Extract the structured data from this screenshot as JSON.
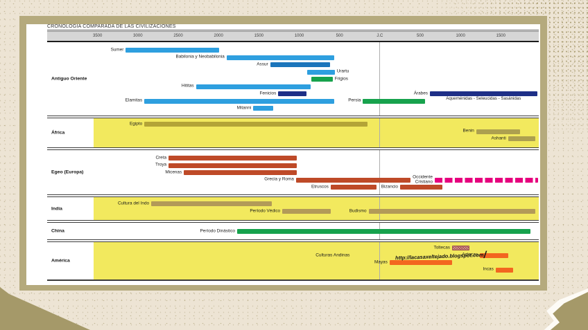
{
  "title": "CRONOLOGIA COMPARADA DE LAS CIVILIZACIONES",
  "watermark": "http://lacasaxeltejado.blogspot.com/",
  "axis": {
    "ticks": [
      {
        "label": "3500",
        "year": -3500
      },
      {
        "label": "3000",
        "year": -3000
      },
      {
        "label": "2500",
        "year": -2500
      },
      {
        "label": "2000",
        "year": -2000
      },
      {
        "label": "1500",
        "year": -1500
      },
      {
        "label": "1000",
        "year": -1000
      },
      {
        "label": "500",
        "year": -500
      },
      {
        "label": "J.C",
        "year": 0
      },
      {
        "label": "500",
        "year": 500
      },
      {
        "label": "1000",
        "year": 1000
      },
      {
        "label": "1500",
        "year": 1500
      }
    ]
  },
  "colors": {
    "lightblue": "#2E9FDF",
    "blue": "#1B75BB",
    "navy": "#1E2F87",
    "green": "#17A24D",
    "olive": "#B3A437",
    "khaki": "#ADA04F",
    "tan": "#B29A58",
    "brick": "#BE4A28",
    "magenta": "#E6007E",
    "orange": "#F3661F",
    "tolteca_base": "#D8A29C",
    "tolteca_line": "#9C4F4F",
    "yellow_band": "#F2E95E",
    "frame": "#B5AA7D"
  },
  "chart_data": {
    "type": "timeline",
    "x_range": [
      -4125,
      1970
    ],
    "note_on_years": "negative = antes de J.C, positive = despues de J.C",
    "sections": [
      {
        "id": "antiguo-oriente",
        "label": "Antiguo Oriente",
        "background": "white",
        "rows": [
          [
            {
              "label": "Sumer",
              "start": -3150,
              "end": -1990,
              "color": "lightblue"
            }
          ],
          [
            {
              "label": "Babilonia y Neobabilonia",
              "start": -1900,
              "end": -570,
              "color": "lightblue"
            }
          ],
          [
            {
              "label": "Assur",
              "start": -1360,
              "end": -620,
              "color": "blue"
            }
          ],
          [
            {
              "label": "Urartu",
              "start": -900,
              "end": -560,
              "color": "lightblue",
              "label_side": "right"
            }
          ],
          [
            {
              "label": "Frigios",
              "start": -850,
              "end": -585,
              "color": "green",
              "label_side": "right"
            }
          ],
          [
            {
              "label": "Hititas",
              "start": -2280,
              "end": -860,
              "color": "lightblue"
            }
          ],
          [
            {
              "label": "Fenicios",
              "start": -1260,
              "end": -910,
              "color": "navy"
            },
            {
              "label": "Árabes",
              "start": 620,
              "end": 1950,
              "color": "navy",
              "sublabel": "Aqueménidas - Seleucidas - Sasánidas"
            }
          ],
          [
            {
              "label": "Elamitas",
              "start": -2920,
              "end": -570,
              "color": "lightblue"
            },
            {
              "label": "Persia",
              "start": -210,
              "end": 560,
              "color": "green"
            }
          ],
          [
            {
              "label": "Mitanni",
              "start": -1570,
              "end": -1320,
              "color": "lightblue"
            }
          ]
        ]
      },
      {
        "id": "africa",
        "label": "África",
        "background": "yellow",
        "rows": [
          [
            {
              "label": "Egipto",
              "start": -2920,
              "end": -155,
              "color": "olive"
            }
          ],
          [
            {
              "label": "Benin",
              "start": 1195,
              "end": 1735,
              "color": "khaki"
            }
          ],
          [
            {
              "label": "Ashanti",
              "start": 1590,
              "end": 1930,
              "color": "khaki"
            }
          ]
        ]
      },
      {
        "id": "egeo-europa",
        "label": "Egeo (Europa)",
        "background": "white",
        "rows": [
          [
            {
              "label": "Creta",
              "start": -2620,
              "end": -1030,
              "color": "brick"
            }
          ],
          [
            {
              "label": "Troya",
              "start": -2620,
              "end": -1030,
              "color": "brick"
            }
          ],
          [
            {
              "label": "Micenas",
              "start": -2430,
              "end": -1030,
              "color": "brick"
            }
          ],
          [
            {
              "label": "Grecia y Roma",
              "start": -1040,
              "end": 380,
              "color": "brick"
            },
            {
              "label": "Occidente\nCristiano",
              "start": 680,
              "end": 1960,
              "color": "magenta",
              "style": "dashed"
            }
          ],
          [
            {
              "label": "Etruscos",
              "start": -610,
              "end": -45,
              "color": "brick"
            },
            {
              "label": "Bizancio",
              "start": 250,
              "end": 775,
              "color": "brick"
            }
          ]
        ]
      },
      {
        "id": "india",
        "label": "India",
        "background": "yellow",
        "rows": [
          [
            {
              "label": "Cultura del Indo",
              "start": -2835,
              "end": -1340,
              "color": "tan"
            }
          ],
          [
            {
              "label": "Período Védico",
              "start": -1210,
              "end": -610,
              "color": "tan"
            },
            {
              "label": "Budismo",
              "start": -140,
              "end": 1925,
              "color": "tan"
            }
          ]
        ]
      },
      {
        "id": "china",
        "label": "China",
        "background": "white",
        "rows": [
          [
            {
              "label": "Período Dinástico",
              "start": -1770,
              "end": 1865,
              "color": "green"
            }
          ]
        ]
      },
      {
        "id": "america",
        "label": "América",
        "background": "yellow",
        "rows": [
          [
            {
              "label": "Toltecas",
              "start": 895,
              "end": 1110,
              "color": "tolteca_base",
              "style": "hatched"
            }
          ],
          [
            {
              "label": "Culturas Andinas",
              "at": -585,
              "style": "text"
            },
            {
              "label": "Aztecas",
              "start": 1240,
              "end": 1590,
              "color": "orange"
            }
          ],
          [
            {
              "label": "Mayas",
              "start": 120,
              "end": 895,
              "color": "orange"
            }
          ],
          [
            {
              "label": "Incas",
              "start": 1435,
              "end": 1650,
              "color": "orange"
            }
          ]
        ]
      }
    ]
  }
}
